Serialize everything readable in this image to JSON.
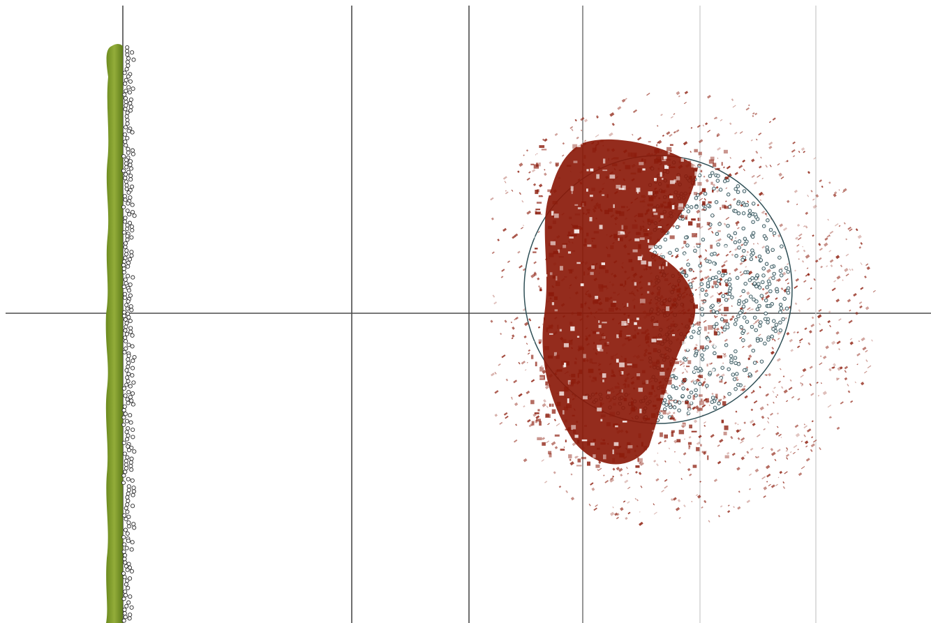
{
  "viewport": {
    "background": "#ffffff",
    "axis_color": "#4a4a4a",
    "light_grid_color": "#cfcfcf"
  },
  "left_object": {
    "fill_color": "#7f9a2c",
    "point_color": "#2a2a2a"
  },
  "right_object": {
    "scatter_color": "#8b1a0a",
    "sphere_point_color": "#2f4f56"
  }
}
